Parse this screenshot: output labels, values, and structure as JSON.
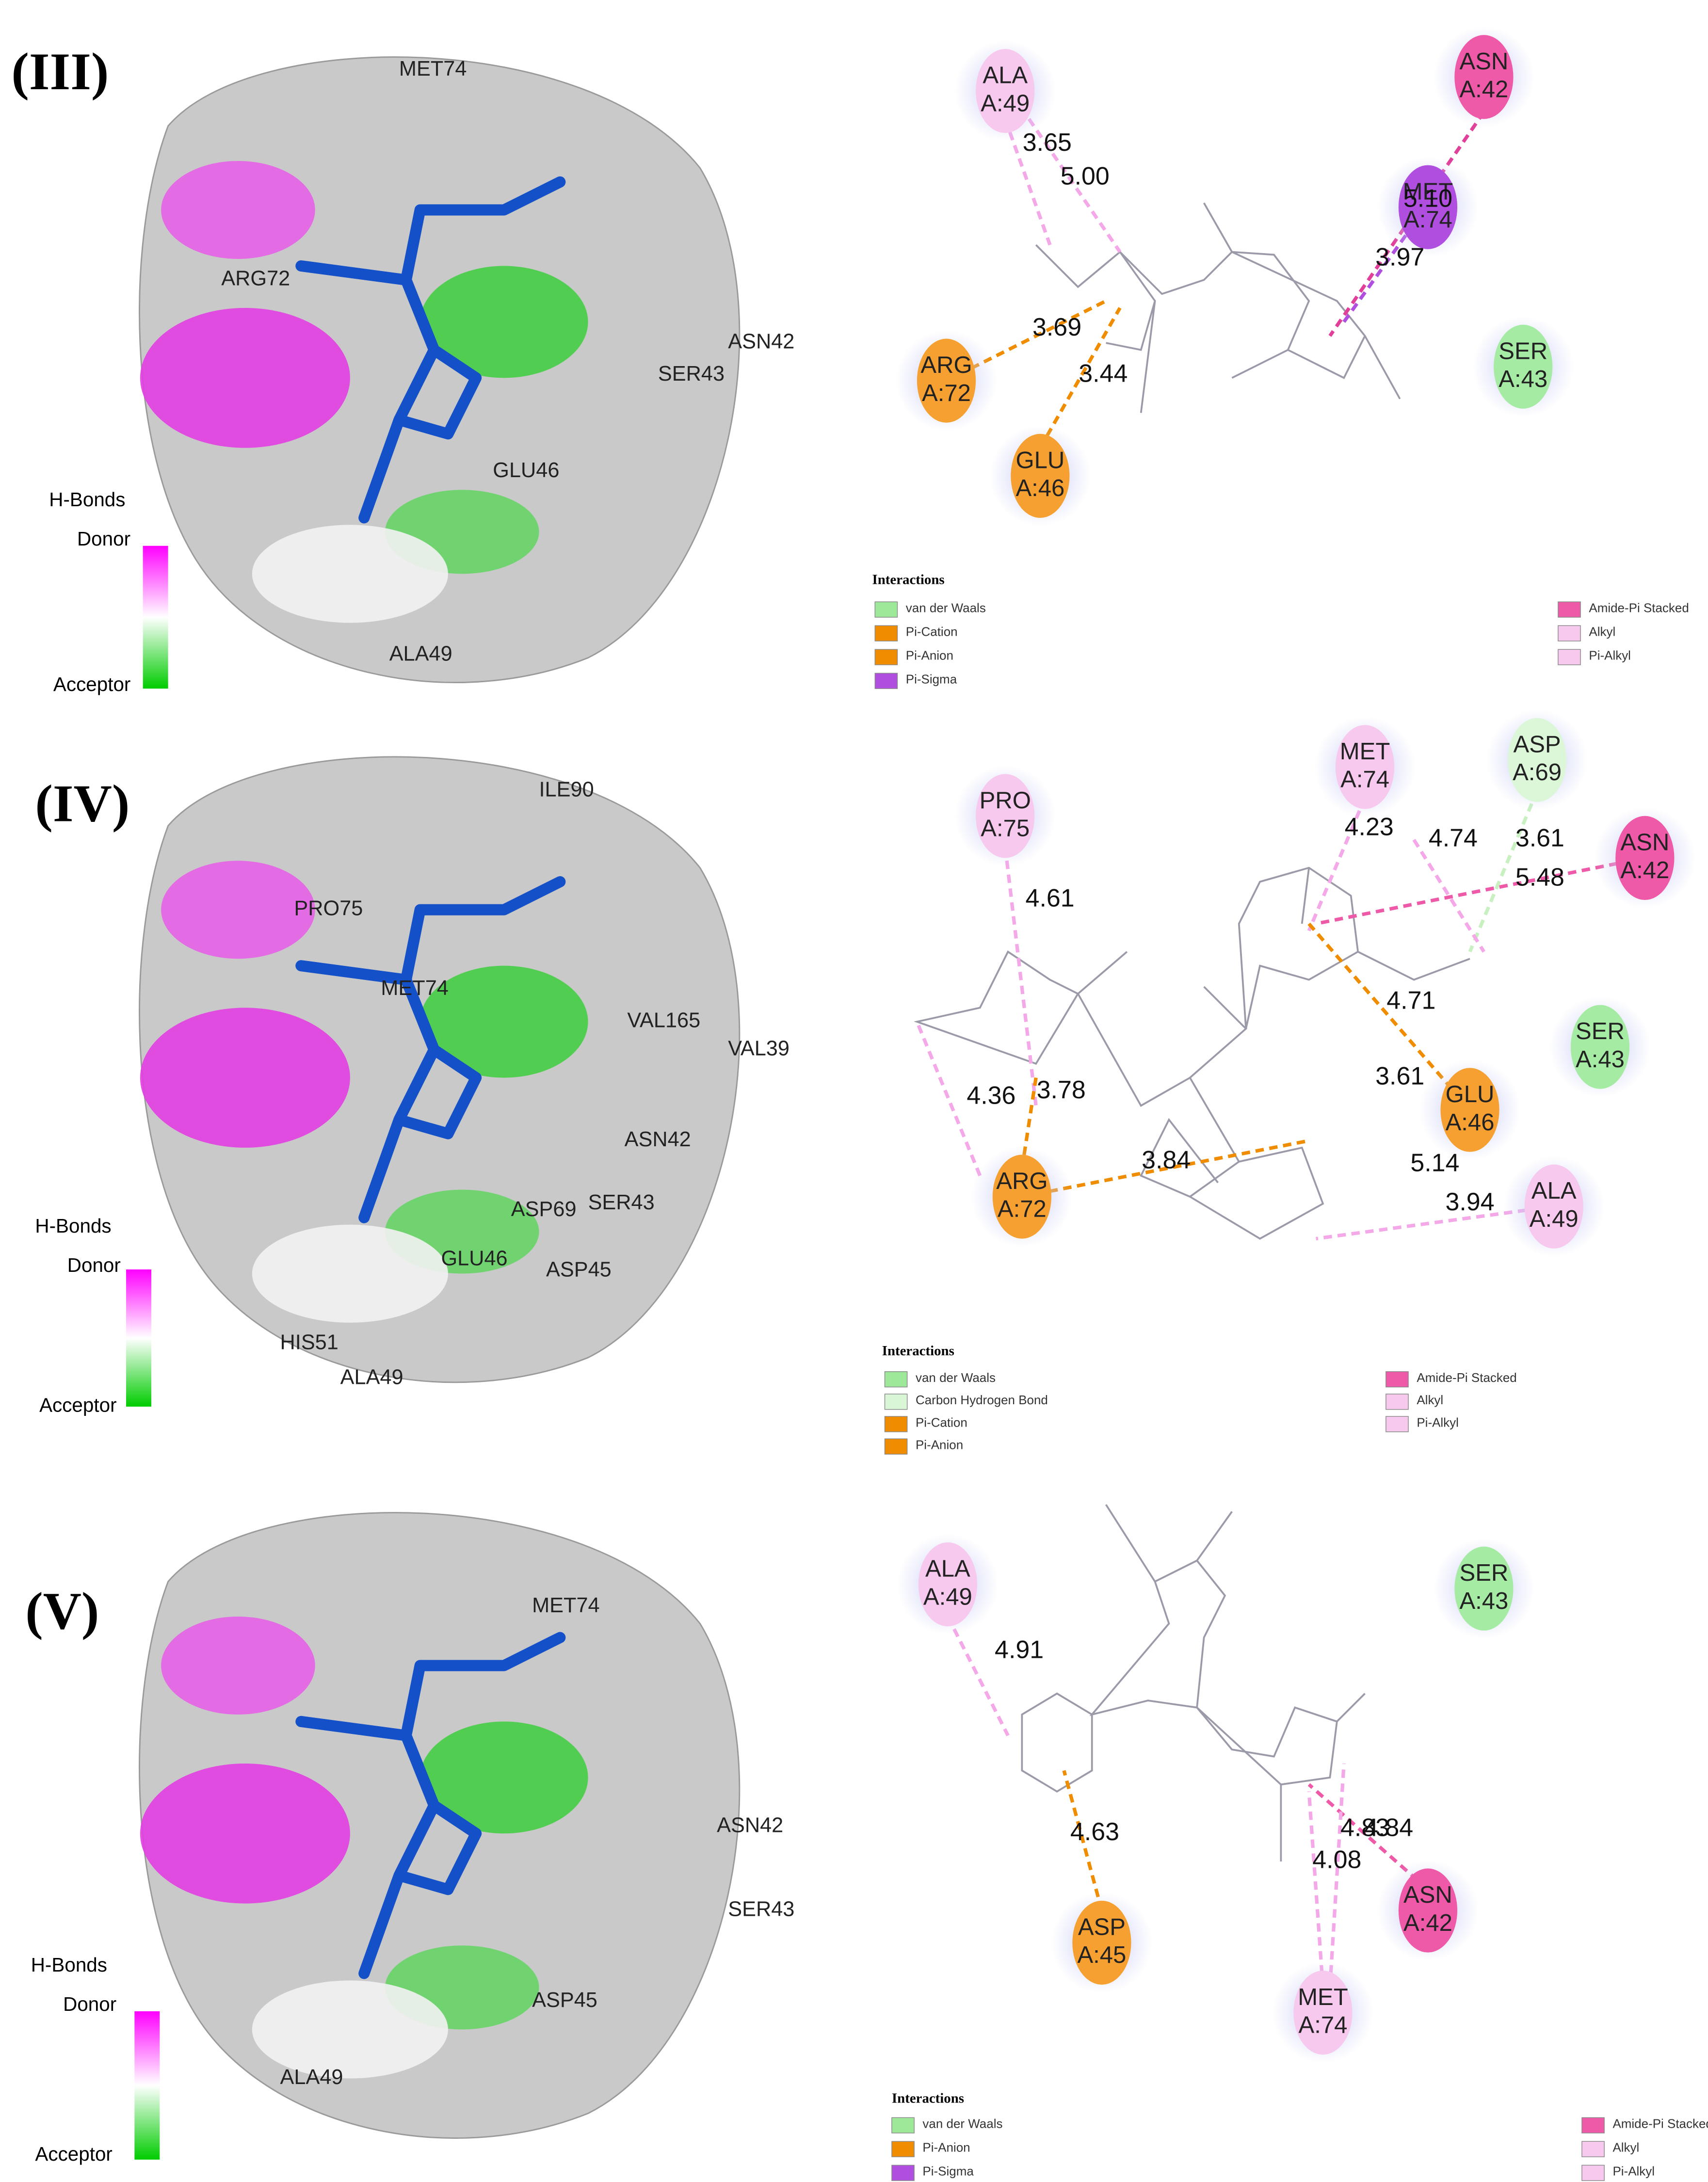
{
  "panels": [
    {
      "label": "(III)",
      "view_labels": [
        "MET74",
        "ARG72",
        "ASN42",
        "SER43",
        "GLU46",
        "ALA49"
      ],
      "hbonds": {
        "title": "H-Bonds",
        "donor": "Donor",
        "acceptor": "Acceptor"
      },
      "residues": [
        {
          "name": "ALA",
          "id": "A:49"
        },
        {
          "name": "ASN",
          "id": "A:42"
        },
        {
          "name": "MET",
          "id": "A:74"
        },
        {
          "name": "ARG",
          "id": "A:72"
        },
        {
          "name": "GLU",
          "id": "A:46"
        },
        {
          "name": "SER",
          "id": "A:43"
        }
      ],
      "distances": [
        "3.65",
        "5.00",
        "5.10",
        "3.97",
        "3.69",
        "3.44"
      ],
      "interactions": {
        "title": "Interactions",
        "items": [
          "van der Waals",
          "Pi-Cation",
          "Pi-Anion",
          "Pi-Sigma",
          "Amide-Pi Stacked",
          "Alkyl",
          "Pi-Alkyl"
        ]
      }
    },
    {
      "label": "(IV)",
      "view_labels": [
        "ILE90",
        "PRO75",
        "MET74",
        "VAL165",
        "VAL39",
        "ASN42",
        "SER43",
        "ASP69",
        "ASP45",
        "GLU46",
        "HIS51",
        "ALA49"
      ],
      "hbonds": {
        "title": "H-Bonds",
        "donor": "Donor",
        "acceptor": "Acceptor"
      },
      "residues": [
        {
          "name": "PRO",
          "id": "A:75"
        },
        {
          "name": "MET",
          "id": "A:74"
        },
        {
          "name": "ASP",
          "id": "A:69"
        },
        {
          "name": "ASN",
          "id": "A:42"
        },
        {
          "name": "SER",
          "id": "A:43"
        },
        {
          "name": "GLU",
          "id": "A:46"
        },
        {
          "name": "ARG",
          "id": "A:72"
        },
        {
          "name": "ALA",
          "id": "A:49"
        }
      ],
      "distances": [
        "4.61",
        "4.23",
        "4.74",
        "3.61",
        "5.48",
        "4.71",
        "4.36",
        "3.78",
        "3.61",
        "3.84",
        "5.14",
        "3.94"
      ],
      "interactions": {
        "title": "Interactions",
        "items": [
          "van der Waals",
          "Carbon Hydrogen Bond",
          "Pi-Cation",
          "Pi-Anion",
          "Amide-Pi Stacked",
          "Alkyl",
          "Pi-Alkyl"
        ]
      }
    },
    {
      "label": "(V)",
      "view_labels": [
        "MET74",
        "ASN42",
        "SER43",
        "ASP45",
        "ALA49"
      ],
      "hbonds": {
        "title": "H-Bonds",
        "donor": "Donor",
        "acceptor": "Acceptor"
      },
      "residues": [
        {
          "name": "ALA",
          "id": "A:49"
        },
        {
          "name": "SER",
          "id": "A:43"
        },
        {
          "name": "ASP",
          "id": "A:45"
        },
        {
          "name": "ASN",
          "id": "A:42"
        },
        {
          "name": "MET",
          "id": "A:74"
        }
      ],
      "distances": [
        "4.91",
        "4.63",
        "4.08",
        "4.83",
        "4.84"
      ],
      "interactions": {
        "title": "Interactions",
        "items": [
          "van der Waals",
          "Pi-Anion",
          "Pi-Sigma",
          "Amide-Pi Stacked",
          "Alkyl",
          "Pi-Alkyl"
        ]
      }
    }
  ]
}
